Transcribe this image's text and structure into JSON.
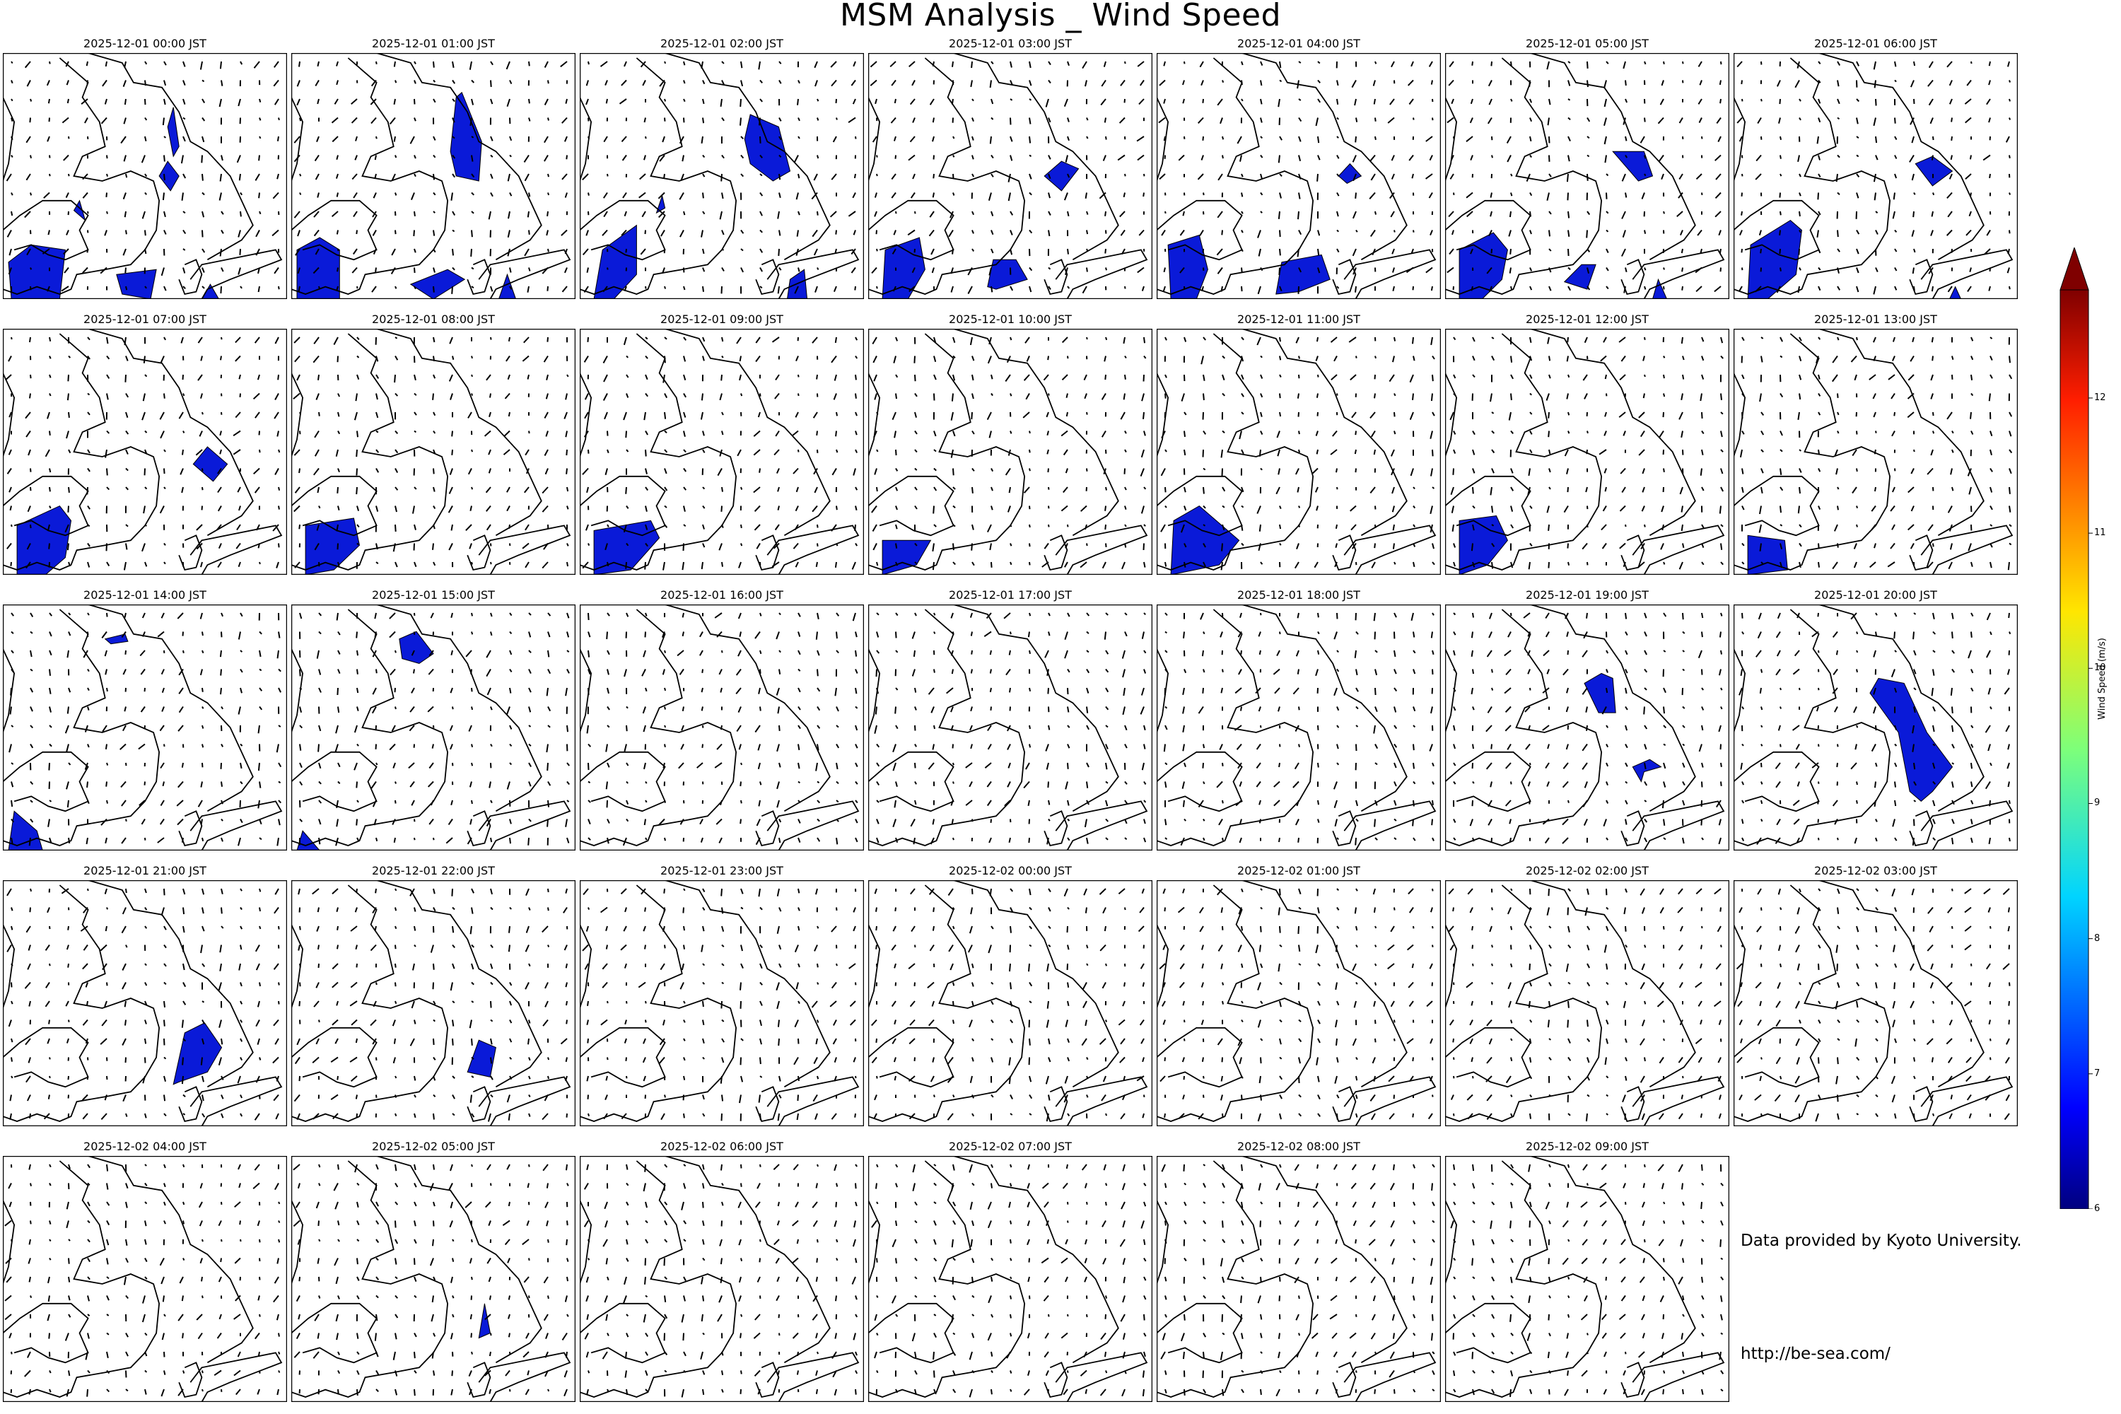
{
  "title": "MSM Analysis _ Wind Speed",
  "panels": [
    {
      "time": "2025-12-01 00:00 JST",
      "blobs": [
        [
          0.02,
          0.85,
          0.03,
          1.0,
          0.2,
          1.0,
          0.22,
          0.8,
          0.1,
          0.78
        ],
        [
          0.55,
          0.5,
          0.58,
          0.44,
          0.62,
          0.5,
          0.59,
          0.56
        ],
        [
          0.4,
          0.9,
          0.54,
          0.88,
          0.52,
          1.0,
          0.42,
          0.98
        ],
        [
          0.58,
          0.3,
          0.6,
          0.22,
          0.62,
          0.38,
          0.6,
          0.42
        ],
        [
          0.25,
          0.64,
          0.27,
          0.6,
          0.29,
          0.68
        ],
        [
          0.7,
          1.0,
          0.73,
          0.94,
          0.76,
          1.0
        ]
      ]
    },
    {
      "time": "2025-12-01 01:00 JST",
      "blobs": [
        [
          0.02,
          0.8,
          0.1,
          0.75,
          0.17,
          0.8,
          0.17,
          1.0,
          0.02,
          1.0
        ],
        [
          0.56,
          0.4,
          0.58,
          0.18,
          0.6,
          0.16,
          0.67,
          0.36,
          0.66,
          0.52,
          0.58,
          0.5
        ],
        [
          0.42,
          0.94,
          0.55,
          0.88,
          0.61,
          0.92,
          0.5,
          1.0
        ],
        [
          0.73,
          1.0,
          0.76,
          0.9,
          0.79,
          1.0
        ]
      ]
    },
    {
      "time": "2025-12-01 02:00 JST",
      "blobs": [
        [
          0.05,
          1.0,
          0.08,
          0.8,
          0.2,
          0.7,
          0.2,
          0.9,
          0.12,
          1.0
        ],
        [
          0.58,
          0.35,
          0.6,
          0.25,
          0.7,
          0.3,
          0.74,
          0.48,
          0.68,
          0.52,
          0.6,
          0.45
        ],
        [
          0.27,
          0.65,
          0.29,
          0.58,
          0.3,
          0.63
        ],
        [
          0.73,
          1.0,
          0.74,
          0.92,
          0.79,
          0.88,
          0.8,
          1.0
        ]
      ]
    },
    {
      "time": "2025-12-01 03:00 JST",
      "blobs": [
        [
          0.05,
          1.0,
          0.06,
          0.8,
          0.18,
          0.75,
          0.2,
          0.88,
          0.14,
          1.0
        ],
        [
          0.62,
          0.5,
          0.68,
          0.44,
          0.74,
          0.47,
          0.68,
          0.56
        ],
        [
          0.42,
          0.95,
          0.44,
          0.84,
          0.52,
          0.84,
          0.56,
          0.92,
          0.45,
          0.96
        ]
      ]
    },
    {
      "time": "2025-12-01 04:00 JST",
      "blobs": [
        [
          0.05,
          1.0,
          0.04,
          0.78,
          0.15,
          0.74,
          0.18,
          0.88,
          0.14,
          1.0
        ],
        [
          0.64,
          0.5,
          0.68,
          0.45,
          0.72,
          0.5,
          0.67,
          0.53
        ],
        [
          0.42,
          0.98,
          0.44,
          0.85,
          0.58,
          0.82,
          0.61,
          0.92,
          0.5,
          0.97
        ]
      ]
    },
    {
      "time": "2025-12-01 05:00 JST",
      "blobs": [
        [
          0.05,
          1.0,
          0.05,
          0.8,
          0.17,
          0.73,
          0.22,
          0.8,
          0.2,
          0.92,
          0.13,
          1.0
        ],
        [
          0.59,
          0.4,
          0.7,
          0.4,
          0.73,
          0.5,
          0.68,
          0.52
        ],
        [
          0.42,
          0.93,
          0.48,
          0.86,
          0.53,
          0.86,
          0.5,
          0.96
        ],
        [
          0.73,
          1.0,
          0.75,
          0.92,
          0.78,
          1.0
        ]
      ]
    },
    {
      "time": "2025-12-01 06:00 JST",
      "blobs": [
        [
          0.05,
          1.0,
          0.06,
          0.78,
          0.2,
          0.68,
          0.24,
          0.72,
          0.22,
          0.9,
          0.12,
          1.0
        ],
        [
          0.64,
          0.45,
          0.7,
          0.42,
          0.77,
          0.48,
          0.7,
          0.54
        ],
        [
          0.76,
          1.0,
          0.78,
          0.95,
          0.8,
          1.0
        ]
      ]
    },
    {
      "time": "2025-12-01 07:00 JST",
      "blobs": [
        [
          0.05,
          1.0,
          0.05,
          0.8,
          0.2,
          0.72,
          0.24,
          0.78,
          0.22,
          0.93,
          0.15,
          1.0
        ],
        [
          0.67,
          0.55,
          0.72,
          0.48,
          0.79,
          0.55,
          0.74,
          0.62
        ]
      ]
    },
    {
      "time": "2025-12-01 08:00 JST",
      "blobs": [
        [
          0.05,
          1.0,
          0.05,
          0.8,
          0.22,
          0.77,
          0.24,
          0.88,
          0.15,
          0.98
        ]
      ]
    },
    {
      "time": "2025-12-01 09:00 JST",
      "blobs": [
        [
          0.05,
          1.0,
          0.05,
          0.82,
          0.25,
          0.78,
          0.28,
          0.85,
          0.18,
          0.98
        ]
      ]
    },
    {
      "time": "2025-12-01 10:00 JST",
      "blobs": [
        [
          0.05,
          1.0,
          0.05,
          0.86,
          0.22,
          0.86,
          0.17,
          0.96
        ]
      ]
    },
    {
      "time": "2025-12-01 11:00 JST",
      "blobs": [
        [
          0.05,
          1.0,
          0.06,
          0.78,
          0.15,
          0.72,
          0.29,
          0.86,
          0.22,
          0.96
        ]
      ]
    },
    {
      "time": "2025-12-01 12:00 JST",
      "blobs": [
        [
          0.05,
          1.0,
          0.05,
          0.78,
          0.18,
          0.76,
          0.22,
          0.86,
          0.15,
          0.96
        ]
      ]
    },
    {
      "time": "2025-12-01 13:00 JST",
      "blobs": [
        [
          0.05,
          1.0,
          0.05,
          0.84,
          0.18,
          0.86,
          0.19,
          0.98
        ]
      ]
    },
    {
      "time": "2025-12-01 14:00 JST",
      "blobs": [
        [
          0.02,
          1.0,
          0.04,
          0.84,
          0.12,
          0.92,
          0.14,
          1.0
        ],
        [
          0.36,
          0.14,
          0.43,
          0.12,
          0.44,
          0.15,
          0.38,
          0.16
        ]
      ]
    },
    {
      "time": "2025-12-01 15:00 JST",
      "blobs": [
        [
          0.02,
          1.0,
          0.04,
          0.92,
          0.1,
          1.0
        ],
        [
          0.38,
          0.14,
          0.44,
          0.11,
          0.5,
          0.2,
          0.45,
          0.24,
          0.39,
          0.22
        ]
      ]
    },
    {
      "time": "2025-12-01 16:00 JST",
      "blobs": []
    },
    {
      "time": "2025-12-01 17:00 JST",
      "blobs": []
    },
    {
      "time": "2025-12-01 18:00 JST",
      "blobs": []
    },
    {
      "time": "2025-12-01 19:00 JST",
      "blobs": [
        [
          0.49,
          0.32,
          0.55,
          0.28,
          0.59,
          0.3,
          0.6,
          0.44,
          0.54,
          0.44
        ],
        [
          0.66,
          0.66,
          0.72,
          0.63,
          0.76,
          0.66,
          0.7,
          0.68,
          0.69,
          0.72
        ]
      ]
    },
    {
      "time": "2025-12-01 20:00 JST",
      "blobs": [
        [
          0.48,
          0.36,
          0.51,
          0.3,
          0.6,
          0.32,
          0.68,
          0.52,
          0.77,
          0.66,
          0.7,
          0.76,
          0.66,
          0.8,
          0.62,
          0.76,
          0.58,
          0.52
        ]
      ]
    },
    {
      "time": "2025-12-01 21:00 JST",
      "blobs": [
        [
          0.6,
          0.83,
          0.64,
          0.62,
          0.71,
          0.58,
          0.77,
          0.68,
          0.72,
          0.78,
          0.62,
          0.82
        ]
      ]
    },
    {
      "time": "2025-12-01 22:00 JST",
      "blobs": [
        [
          0.62,
          0.78,
          0.66,
          0.65,
          0.72,
          0.68,
          0.7,
          0.8
        ]
      ]
    },
    {
      "time": "2025-12-01 23:00 JST",
      "blobs": []
    },
    {
      "time": "2025-12-02 00:00 JST",
      "blobs": []
    },
    {
      "time": "2025-12-02 01:00 JST",
      "blobs": []
    },
    {
      "time": "2025-12-02 02:00 JST",
      "blobs": []
    },
    {
      "time": "2025-12-02 03:00 JST",
      "blobs": []
    },
    {
      "time": "2025-12-02 04:00 JST",
      "blobs": []
    },
    {
      "time": "2025-12-02 05:00 JST",
      "blobs": [
        [
          0.66,
          0.74,
          0.68,
          0.6,
          0.7,
          0.72
        ]
      ]
    },
    {
      "time": "2025-12-02 06:00 JST",
      "blobs": []
    },
    {
      "time": "2025-12-02 07:00 JST",
      "blobs": []
    },
    {
      "time": "2025-12-02 08:00 JST",
      "blobs": []
    },
    {
      "time": "2025-12-02 09:00 JST",
      "blobs": []
    }
  ],
  "colorbar": {
    "label": "Wind Speed (m/s)",
    "min": 6,
    "max": 12.8,
    "ticks": [
      "6",
      "7",
      "8",
      "9",
      "10",
      "11",
      "12"
    ],
    "extend": "max",
    "colormap": "jet",
    "fill_color": "#0a1ad8"
  },
  "credits": {
    "line1": "Data provided by Kyoto University.",
    "line2": "http://be-sea.com/"
  }
}
